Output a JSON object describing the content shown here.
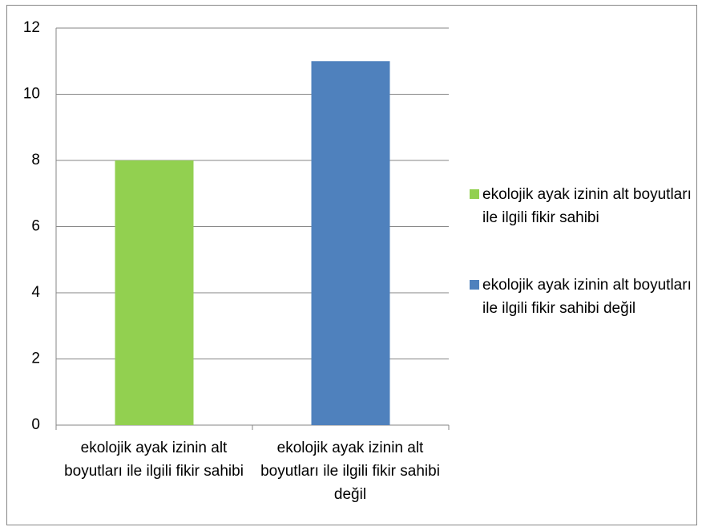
{
  "chart_data": {
    "type": "bar",
    "categories": [
      "ekolojik ayak izinin alt boyutları ile ilgili fikir sahibi",
      "ekolojik ayak izinin alt boyutları ile ilgili fikir sahibi değil"
    ],
    "values": [
      8,
      11
    ],
    "colors": [
      "#92d050",
      "#4f81bd"
    ],
    "ylim": [
      0,
      12
    ],
    "yticks": [
      0,
      2,
      4,
      6,
      8,
      10,
      12
    ],
    "grid": true,
    "legend": "right"
  }
}
